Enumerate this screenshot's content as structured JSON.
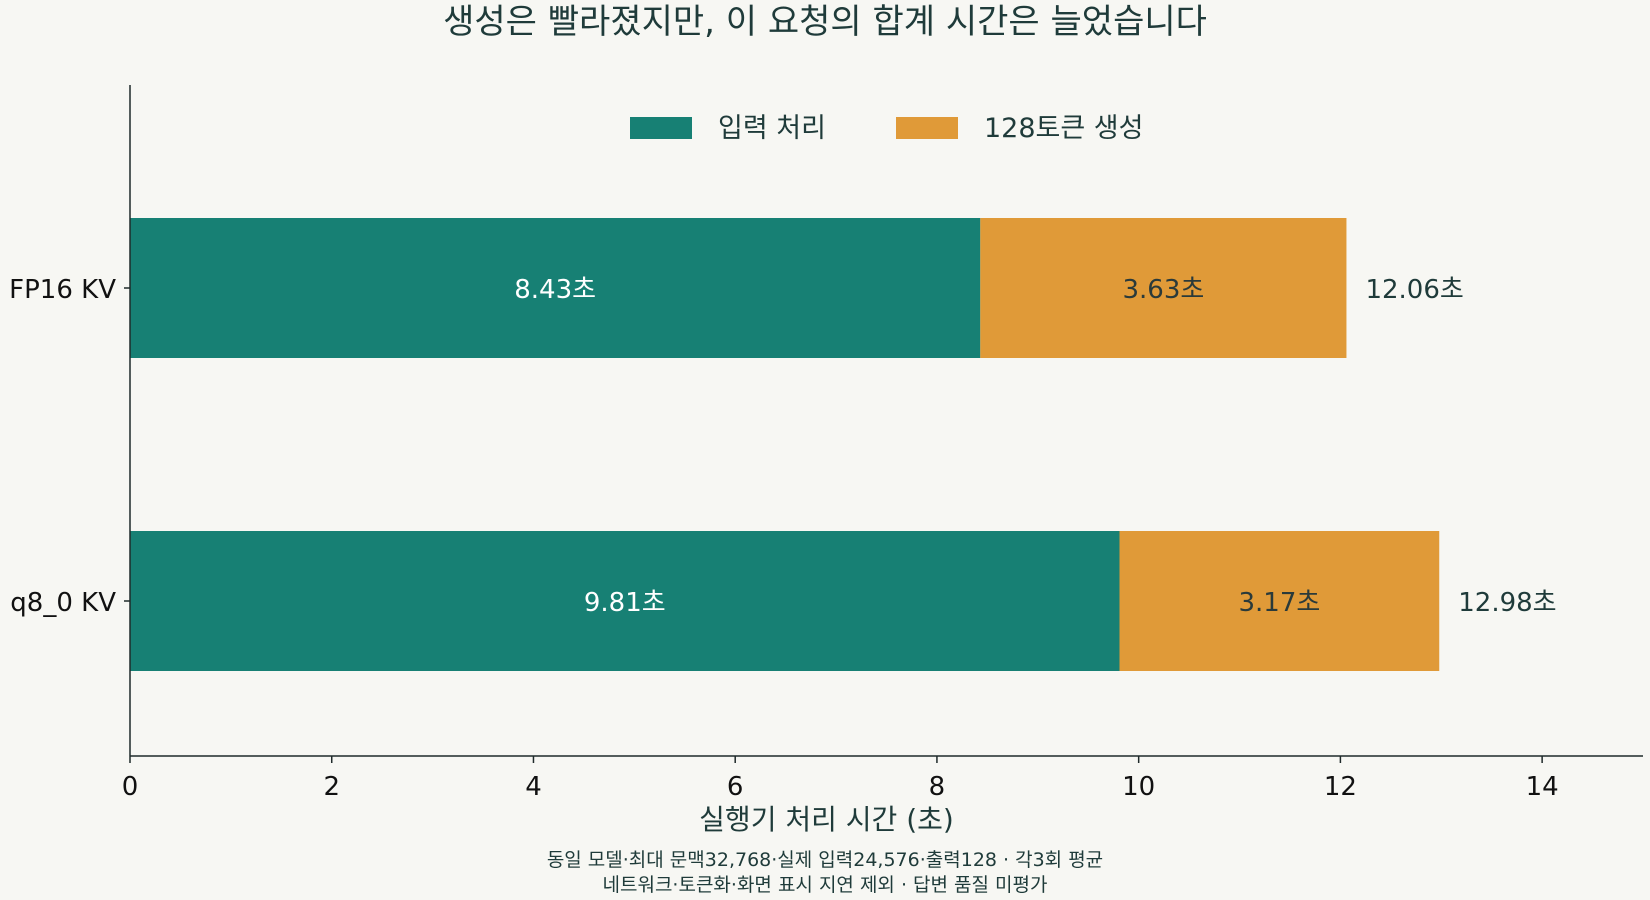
{
  "chart_data": {
    "type": "bar",
    "orientation": "horizontal",
    "stacked": true,
    "title": "생성은 빨라졌지만, 이 요청의 합계 시간은 늘었습니다",
    "xlabel": "실행기 처리 시간 (초)",
    "ylabel": "",
    "xlim": [
      0,
      15
    ],
    "xticks": [
      0,
      2,
      4,
      6,
      8,
      10,
      12,
      14
    ],
    "categories": [
      "FP16 KV",
      "q8_0 KV"
    ],
    "series": [
      {
        "name": "입력 처리",
        "values": [
          8.43,
          9.81
        ],
        "color": "#178074",
        "labels": [
          "8.43초",
          "9.81초"
        ],
        "label_color": "#ffffff"
      },
      {
        "name": "128토큰 생성",
        "values": [
          3.63,
          3.17
        ],
        "color": "#e09a38",
        "labels": [
          "3.63초",
          "3.17초"
        ],
        "label_color": "#2a3a3a"
      }
    ],
    "totals": {
      "values": [
        12.06,
        12.98
      ],
      "labels": [
        "12.06초",
        "12.98초"
      ]
    },
    "legend": {
      "position": "top-center"
    },
    "grid": false,
    "notes": [
      "동일 모델·최대 문맥32,768·실제 입력24,576·출력128 · 각3회 평균",
      "네트워크·토큰화·화면 표시 지연 제외 · 답변 품질 미평가"
    ]
  },
  "colors": {
    "background": "#f7f7f3",
    "text": "#1f3b3a",
    "axis": "#1f2a2a"
  }
}
